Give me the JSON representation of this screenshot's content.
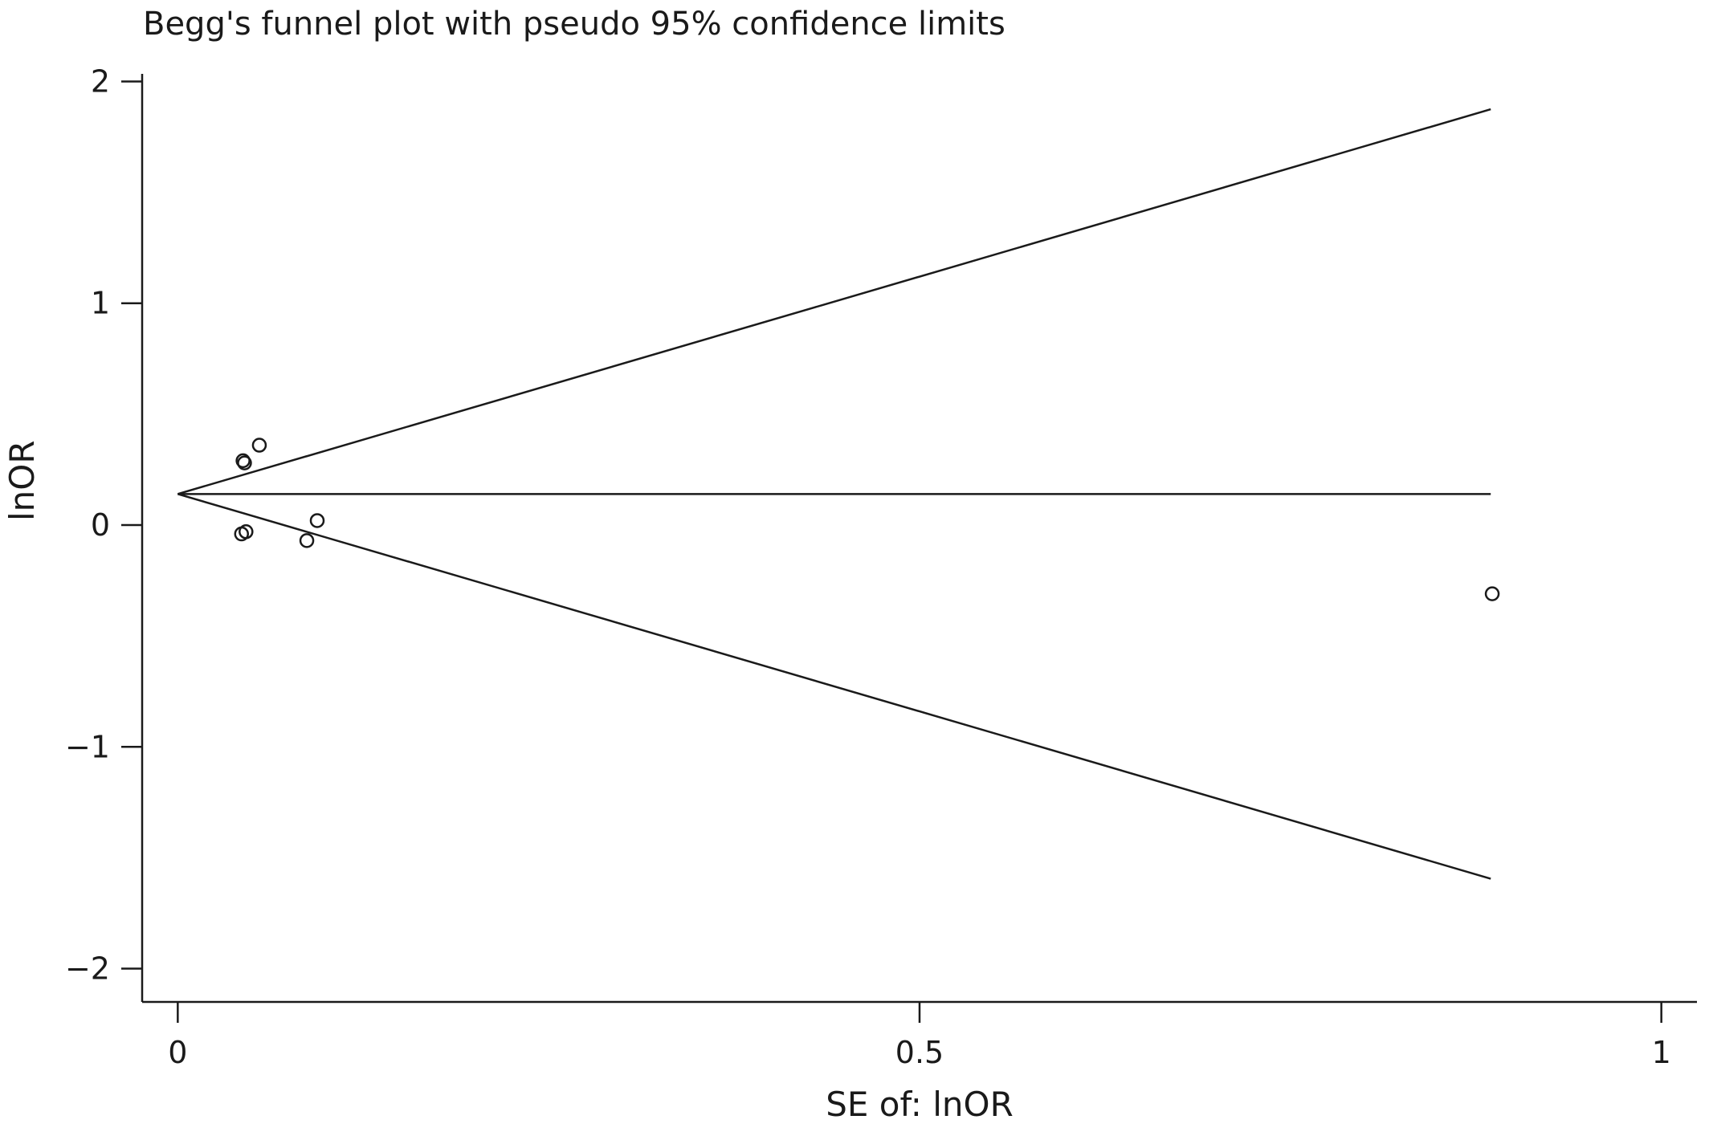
{
  "chart_data": {
    "type": "scatter",
    "title": "Begg's funnel plot with pseudo 95% confidence limits",
    "xlabel": "SE of: lnOR",
    "ylabel": "lnOR",
    "xlim": [
      -0.024,
      1.024
    ],
    "ylim": [
      -2.15,
      2.15
    ],
    "xticks": [
      {
        "value": 0,
        "label": "0"
      },
      {
        "value": 0.5,
        "label": "0.5"
      },
      {
        "value": 1,
        "label": "1"
      }
    ],
    "yticks": [
      {
        "value": 2,
        "label": "2"
      },
      {
        "value": 1,
        "label": "1"
      },
      {
        "value": 0,
        "label": "0"
      },
      {
        "value": -1,
        "label": "−1"
      },
      {
        "value": -2,
        "label": "−2"
      }
    ],
    "pooled_estimate": 0.14,
    "max_se": 0.885,
    "points": [
      {
        "x": 0.044,
        "y": 0.29
      },
      {
        "x": 0.045,
        "y": 0.28
      },
      {
        "x": 0.055,
        "y": 0.36
      },
      {
        "x": 0.043,
        "y": -0.04
      },
      {
        "x": 0.046,
        "y": -0.03
      },
      {
        "x": 0.087,
        "y": -0.07
      },
      {
        "x": 0.094,
        "y": 0.02
      },
      {
        "x": 0.886,
        "y": -0.31
      }
    ],
    "grid": false,
    "legend": "none"
  }
}
